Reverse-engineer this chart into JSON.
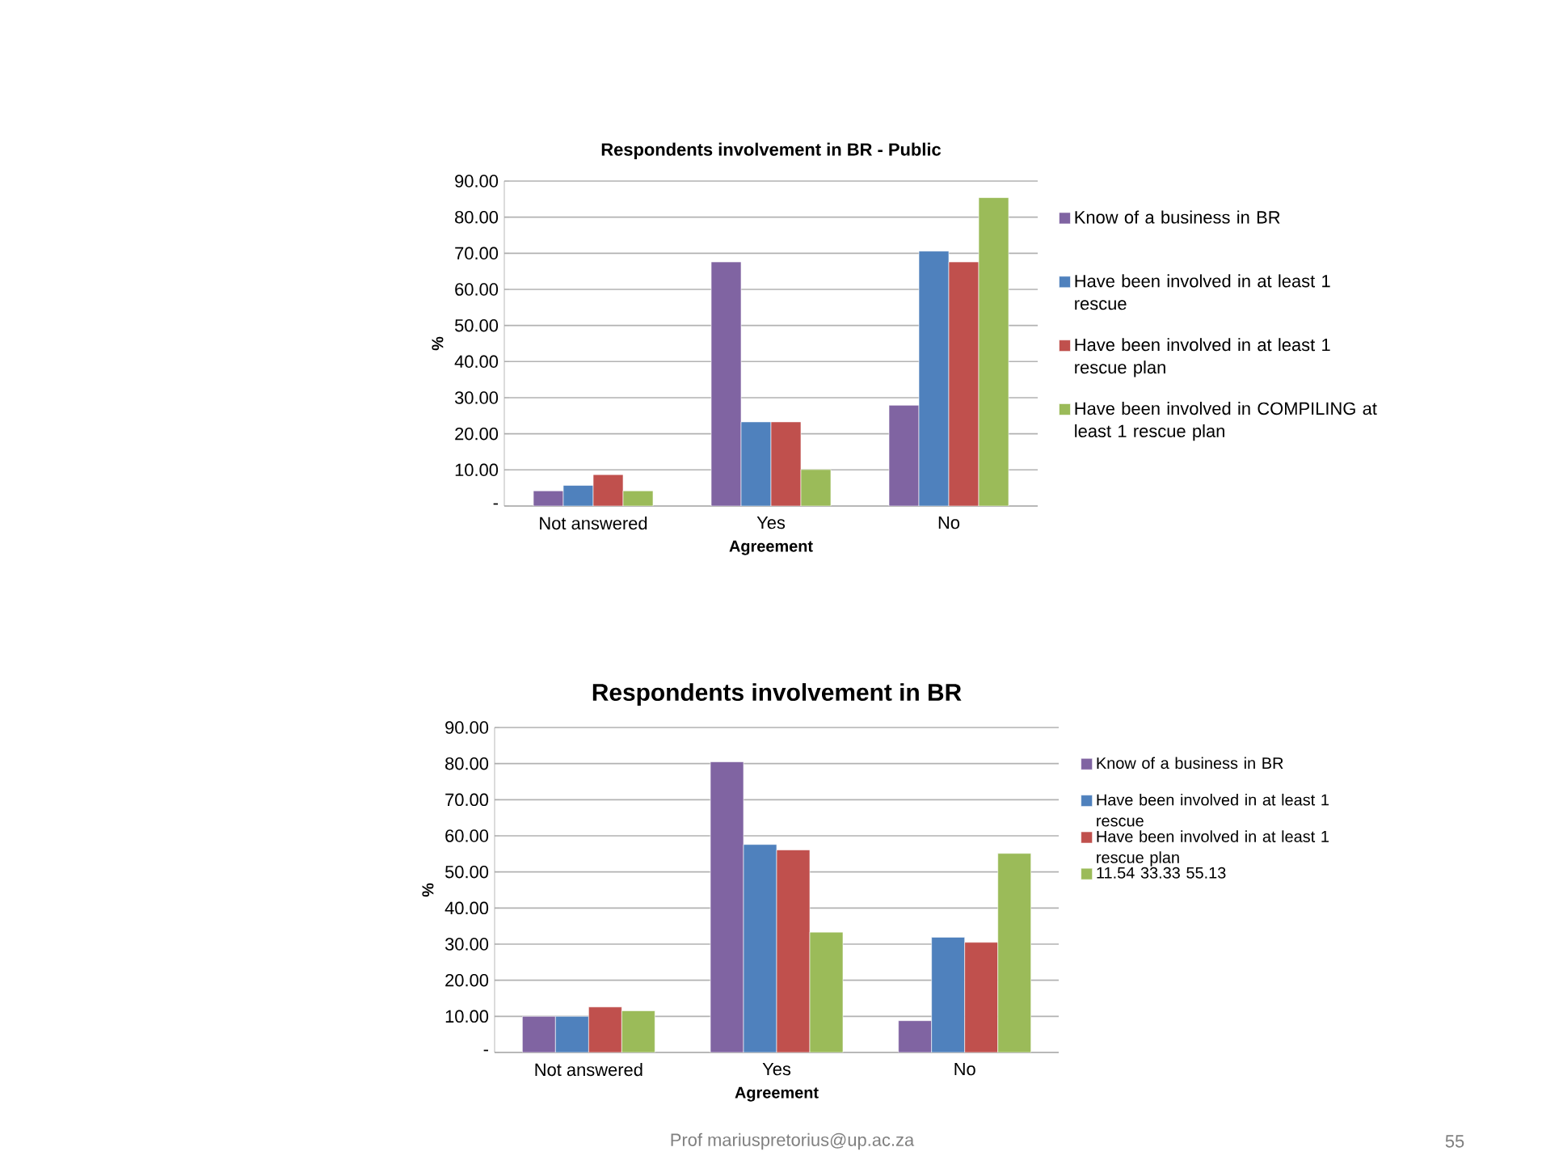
{
  "chart_data": [
    {
      "type": "bar",
      "title": "Respondents involvement in BR - Public",
      "xlabel": "Agreement",
      "ylabel": "%",
      "categories": [
        "Not answered",
        "Yes",
        "No"
      ],
      "series": [
        {
          "name": "Know of a business in BR",
          "color": "#8064a2",
          "values": [
            4.2,
            67.6,
            27.9
          ]
        },
        {
          "name": "Have been involved in at least 1 rescue",
          "color": "#4f81bd",
          "values": [
            5.7,
            23.3,
            70.6
          ]
        },
        {
          "name": "Have been involved in at least 1 rescue plan",
          "color": "#c0504d",
          "values": [
            8.7,
            23.3,
            67.6
          ]
        },
        {
          "name": "Have been involved in COMPILING at least 1 rescue plan",
          "color": "#9bbb59",
          "values": [
            4.2,
            10.1,
            85.4
          ]
        }
      ],
      "ylim": [
        0,
        90
      ],
      "yticks": [
        {
          "value": 0,
          "label": "-"
        },
        {
          "value": 10,
          "label": "10.00"
        },
        {
          "value": 20,
          "label": "20.00"
        },
        {
          "value": 30,
          "label": "30.00"
        },
        {
          "value": 40,
          "label": "40.00"
        },
        {
          "value": 50,
          "label": "50.00"
        },
        {
          "value": 60,
          "label": "60.00"
        },
        {
          "value": 70,
          "label": "70.00"
        },
        {
          "value": 80,
          "label": "80.00"
        },
        {
          "value": 90,
          "label": "90.00"
        }
      ],
      "grid": "y",
      "legend": "right"
    },
    {
      "type": "bar",
      "title": "Respondents involvement in BR",
      "xlabel": "Agreement",
      "ylabel": "%",
      "categories": [
        "Not answered",
        "Yes",
        "No"
      ],
      "series": [
        {
          "name": "Know of a business in BR",
          "color": "#8064a2",
          "values": [
            10.0,
            80.5,
            8.8
          ]
        },
        {
          "name": "Have been involved in at least 1 rescue",
          "color": "#4f81bd",
          "values": [
            10.0,
            57.6,
            31.9
          ]
        },
        {
          "name": "Have been involved in at least 1 rescue plan",
          "color": "#c0504d",
          "values": [
            12.6,
            56.1,
            30.5
          ]
        },
        {
          "name": "11.54   33.33   55.13",
          "color": "#9bbb59",
          "values": [
            11.54,
            33.33,
            55.13
          ]
        }
      ],
      "ylim": [
        0,
        90
      ],
      "yticks": [
        {
          "value": 0,
          "label": "-"
        },
        {
          "value": 10,
          "label": "10.00"
        },
        {
          "value": 20,
          "label": "20.00"
        },
        {
          "value": 30,
          "label": "30.00"
        },
        {
          "value": 40,
          "label": "40.00"
        },
        {
          "value": 50,
          "label": "50.00"
        },
        {
          "value": 60,
          "label": "60.00"
        },
        {
          "value": 70,
          "label": "70.00"
        },
        {
          "value": 80,
          "label": "80.00"
        },
        {
          "value": 90,
          "label": "90.00"
        }
      ],
      "grid": "y",
      "legend": "right",
      "annotations": [
        "Prof mariuspretorius@up.ac.za",
        "55"
      ]
    }
  ]
}
